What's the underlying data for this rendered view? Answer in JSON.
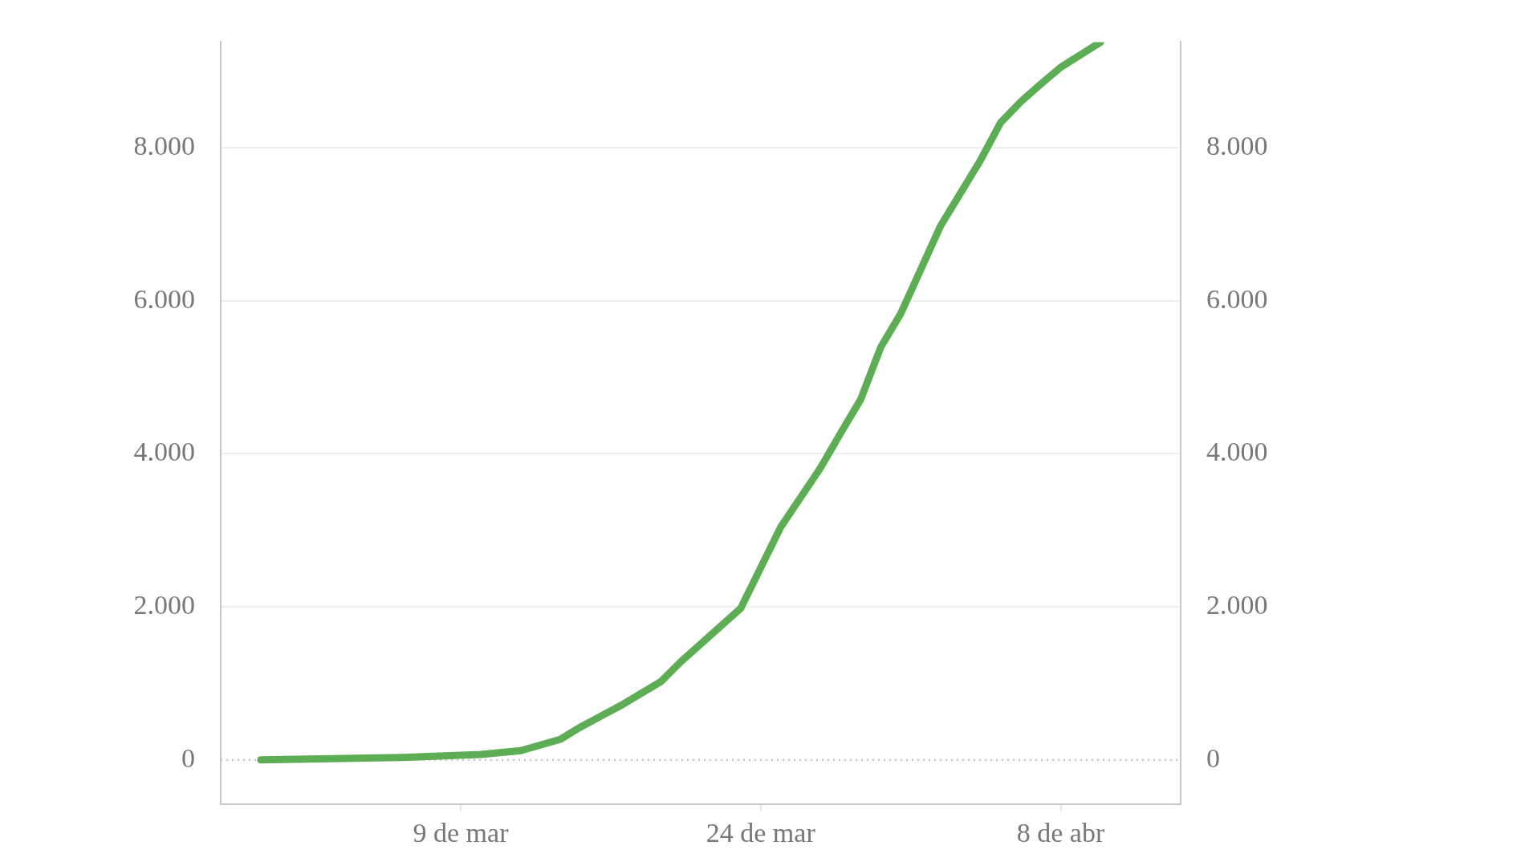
{
  "chart_data": {
    "type": "line",
    "x": [
      "--02-27",
      "--03-06",
      "--03-10",
      "--03-12",
      "--03-14",
      "--03-15",
      "--03-17",
      "--03-19",
      "--03-20",
      "--03-23",
      "--03-25",
      "--03-27",
      "--03-28",
      "--03-29",
      "--03-30",
      "--03-31",
      "--04-02",
      "--04-04",
      "--04-05",
      "--04-06",
      "--04-07",
      "--04-08",
      "--04-10"
    ],
    "series": [
      {
        "color": "#5cad54",
        "values": [
          0,
          30,
          70,
          120,
          270,
          430,
          710,
          1020,
          1280,
          1980,
          3040,
          3820,
          4270,
          4710,
          5390,
          5830,
          6980,
          7840,
          8330,
          8600,
          8830,
          9050,
          9380
        ]
      }
    ],
    "xlim": [
      "--02-25",
      "--04-14"
    ],
    "xticks": [
      {
        "value": "--03-09",
        "label": "9 de mar"
      },
      {
        "value": "--03-24",
        "label": "24 de mar"
      },
      {
        "value": "--04-08",
        "label": "8 de abr"
      }
    ],
    "ylim": [
      -580,
      9380
    ],
    "yticks": [
      {
        "value": 0,
        "label": "0"
      },
      {
        "value": 2000,
        "label": "2.000"
      },
      {
        "value": 4000,
        "label": "4.000"
      },
      {
        "value": 6000,
        "label": "6.000"
      },
      {
        "value": 8000,
        "label": "8.000"
      }
    ],
    "y2lim": [
      -580,
      9380
    ],
    "y2ticks": [
      {
        "value": 0,
        "label": "0"
      },
      {
        "value": 2000,
        "label": "2.000"
      },
      {
        "value": 4000,
        "label": "4.000"
      },
      {
        "value": 6000,
        "label": "6.000"
      },
      {
        "value": 8000,
        "label": "8.000"
      }
    ],
    "ref_lines": [
      {
        "axis": "y",
        "value": 0,
        "line_style": "dotted",
        "color": "#bbbbbb"
      }
    ],
    "grid": "y",
    "legend": false,
    "marker": "none",
    "line_style": "solid"
  }
}
